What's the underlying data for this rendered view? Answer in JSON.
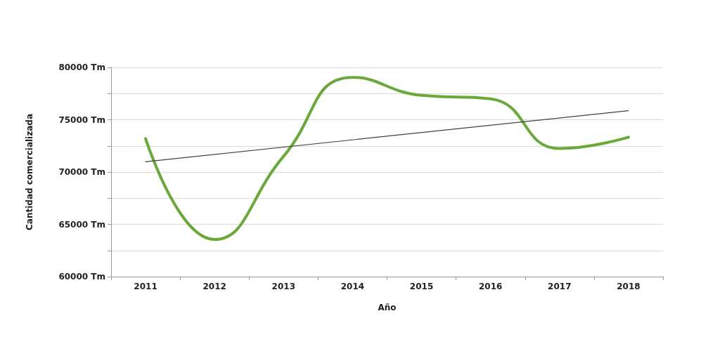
{
  "chart_data": {
    "type": "line",
    "xlabel": "Año",
    "ylabel": "Cantidad comercializada",
    "categories": [
      "2011",
      "2012",
      "2013",
      "2014",
      "2015",
      "2016",
      "2017",
      "2018"
    ],
    "series": [
      {
        "color": "#6aa83c",
        "values": [
          73200,
          63550,
          71500,
          79050,
          77330,
          77000,
          72250,
          73330
        ]
      },
      {
        "type": "line",
        "color": "#404040",
        "values": [
          70980,
          null,
          null,
          null,
          null,
          null,
          null,
          75870
        ]
      }
    ],
    "ylim": [
      60000,
      80000
    ],
    "yticks": [
      {
        "value": 60000,
        "label": "60000 Tm"
      },
      {
        "value": 62500,
        "label": null
      },
      {
        "value": 65000,
        "label": "65000 Tm"
      },
      {
        "value": 67500,
        "label": null
      },
      {
        "value": 70000,
        "label": "70000 Tm"
      },
      {
        "value": 72500,
        "label": null
      },
      {
        "value": 75000,
        "label": "75000 Tm"
      },
      {
        "value": 77500,
        "label": null
      },
      {
        "value": 80000,
        "label": "80000 Tm"
      }
    ],
    "grid": "y",
    "marker": "none"
  }
}
